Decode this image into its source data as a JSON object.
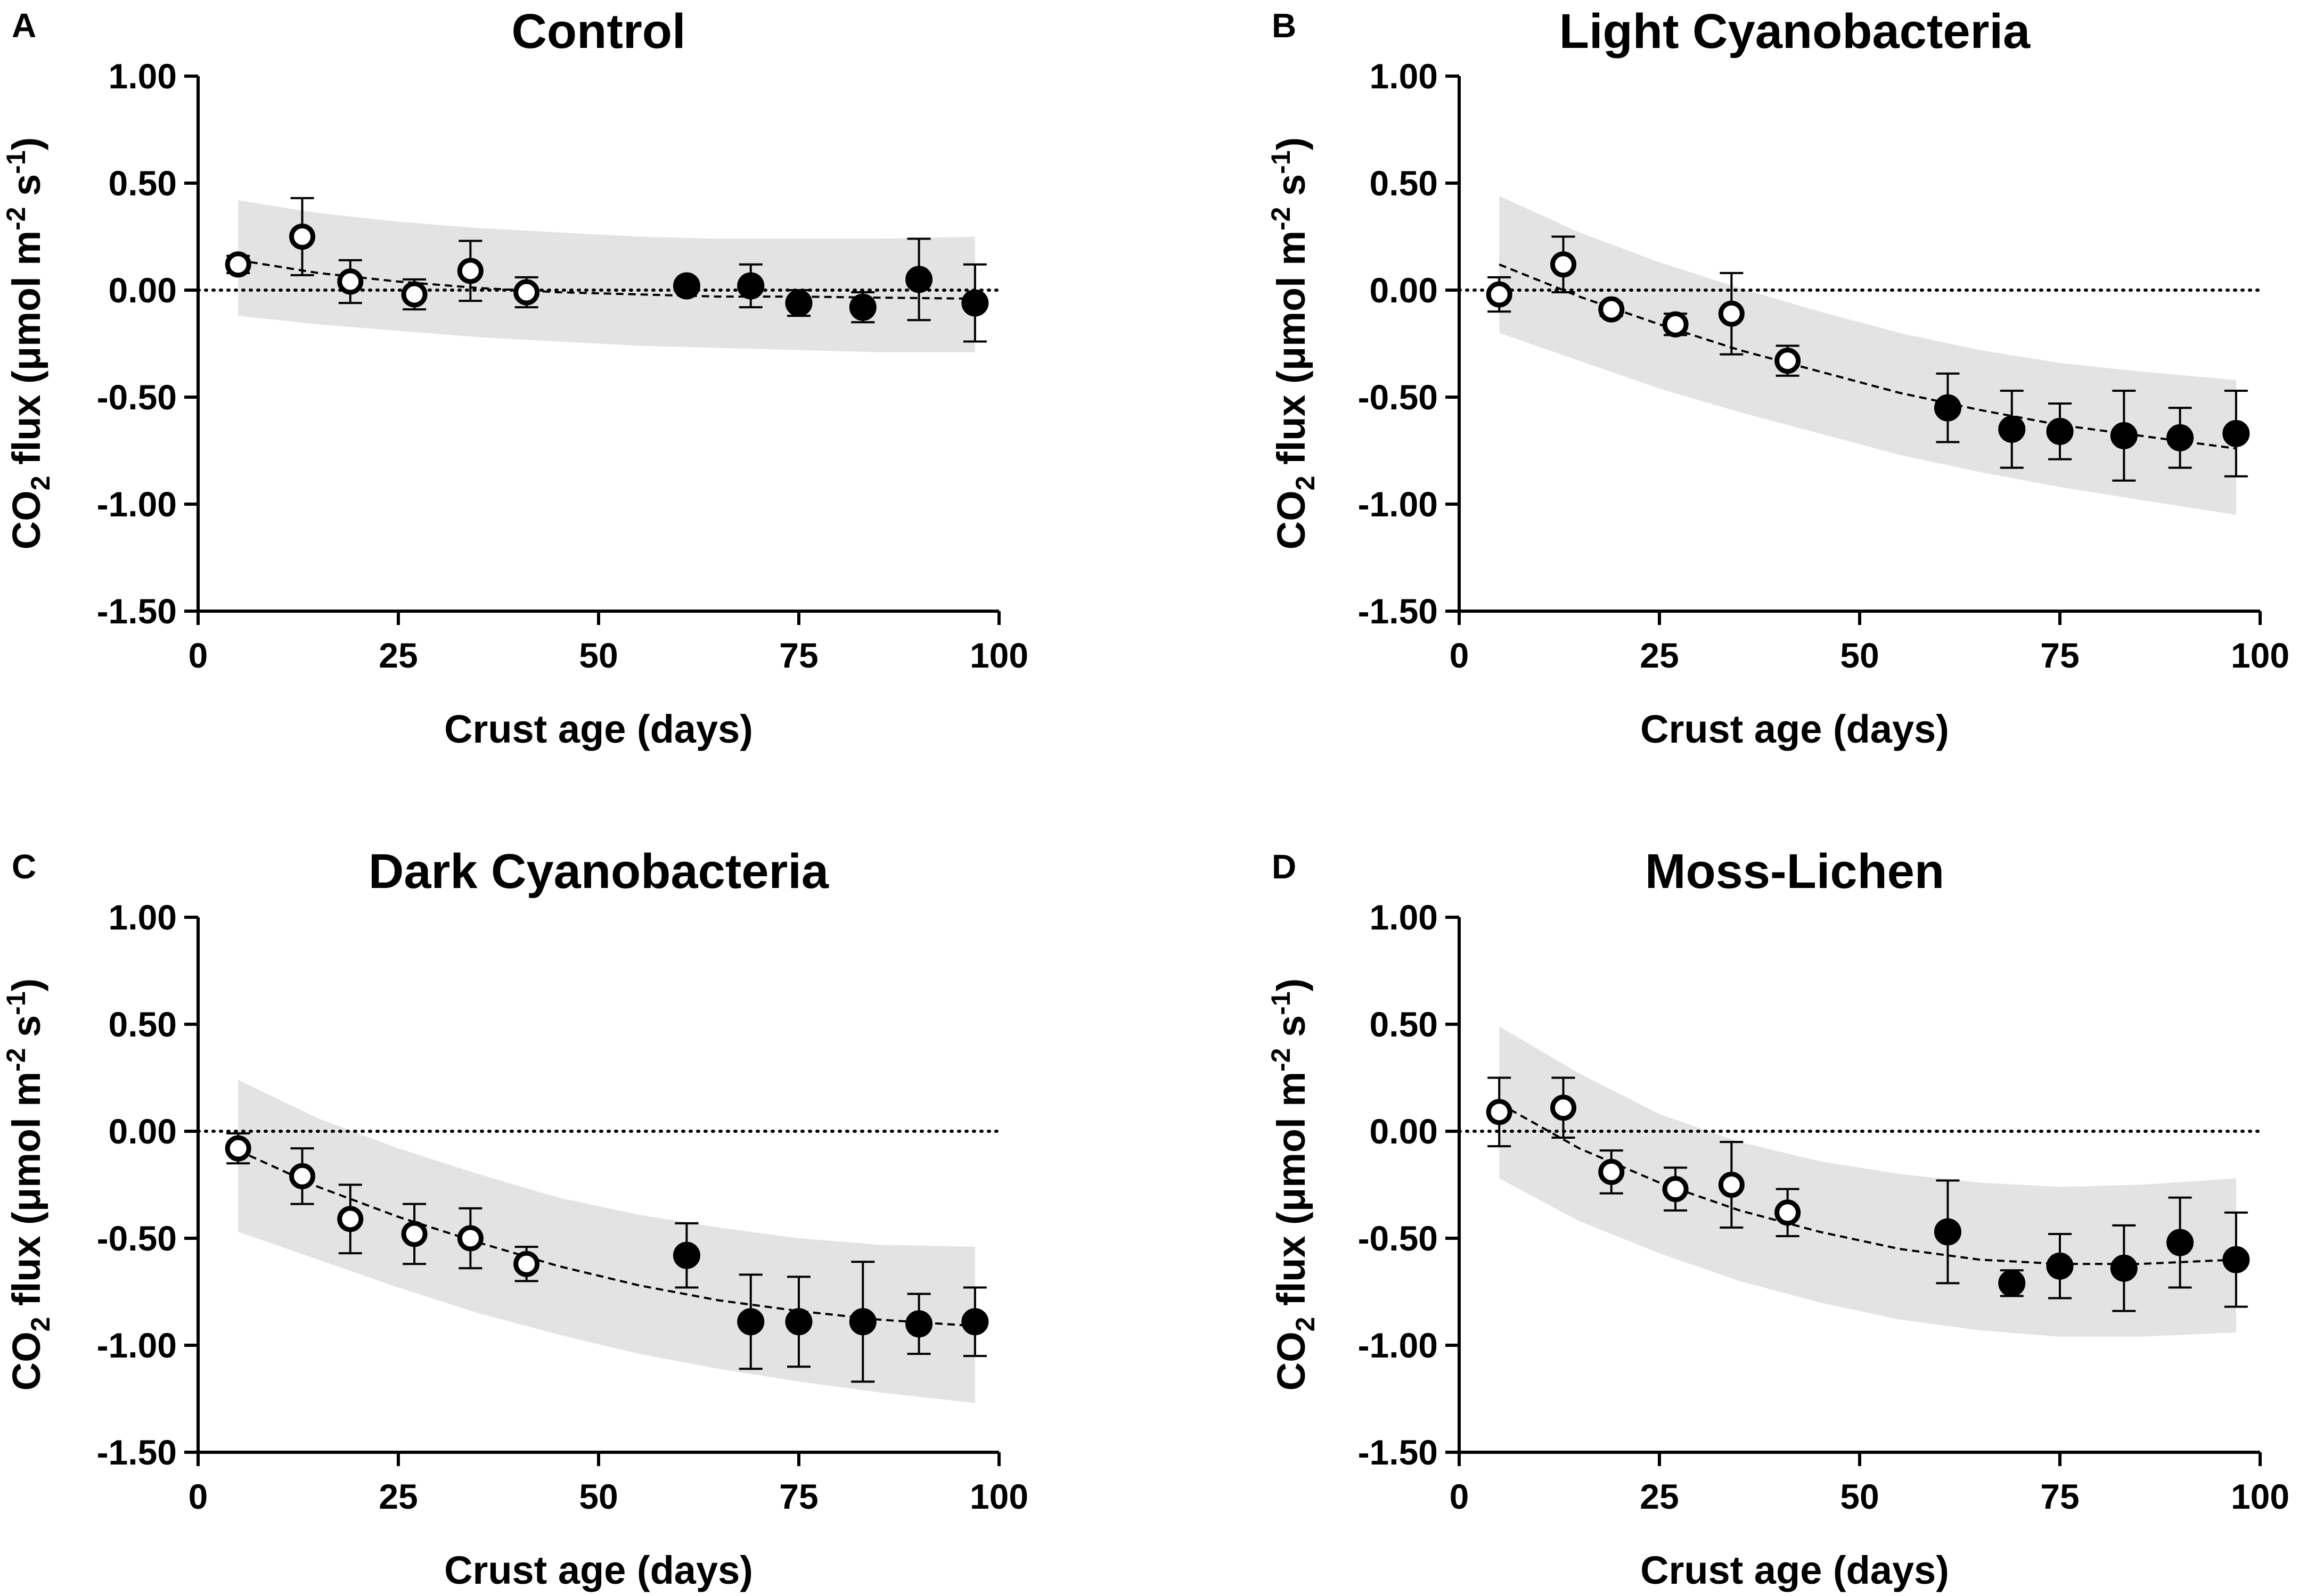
{
  "chart_data": [
    {
      "type": "scatter",
      "panel_label": "A",
      "title": "Control",
      "xlabel": "Crust age (days)",
      "ylabel": "CO2 flux (μmol m-2 s-1)",
      "ylabel_parts": {
        "a": "CO",
        "b": "2",
        "c": " flux (μmol m",
        "d": "-2",
        "e": " s",
        "f": "-1",
        "g": ")"
      },
      "xlim": [
        0,
        100
      ],
      "ylim": [
        -1.5,
        1.0
      ],
      "xticks": [
        0,
        25,
        50,
        75,
        100
      ],
      "yticks": [
        1.0,
        0.5,
        0.0,
        -0.5,
        -1.0,
        -1.5
      ],
      "xtick_labels": [
        "0",
        "25",
        "50",
        "75",
        "100"
      ],
      "ytick_labels": [
        "1.00",
        "0.50",
        "0.00",
        "-0.50",
        "-1.00",
        "-1.50"
      ],
      "zero_line": true,
      "series": [
        {
          "name": "open",
          "filled": false,
          "x": [
            5,
            13,
            19,
            27,
            34,
            41
          ],
          "y": [
            0.12,
            0.25,
            0.04,
            -0.02,
            0.09,
            -0.01
          ],
          "err": [
            0.04,
            0.18,
            0.1,
            0.07,
            0.14,
            0.07
          ]
        },
        {
          "name": "filled",
          "filled": true,
          "x": [
            61,
            69,
            75,
            83,
            90,
            97
          ],
          "y": [
            0.02,
            0.02,
            -0.06,
            -0.08,
            0.05,
            -0.06
          ],
          "err": [
            0.02,
            0.1,
            0.06,
            0.07,
            0.19,
            0.18
          ]
        }
      ],
      "fit": {
        "x": [
          5,
          15,
          25,
          35,
          45,
          55,
          65,
          75,
          85,
          97
        ],
        "y": [
          0.14,
          0.08,
          0.04,
          0.01,
          -0.01,
          -0.02,
          -0.03,
          -0.03,
          -0.035,
          -0.04
        ]
      },
      "band_upper": [
        0.42,
        0.36,
        0.32,
        0.29,
        0.27,
        0.25,
        0.24,
        0.24,
        0.24,
        0.25
      ],
      "band_lower": [
        -0.12,
        -0.16,
        -0.19,
        -0.22,
        -0.24,
        -0.26,
        -0.27,
        -0.28,
        -0.29,
        -0.29
      ]
    },
    {
      "type": "scatter",
      "panel_label": "B",
      "title": "Light Cyanobacteria",
      "xlabel": "Crust age (days)",
      "ylabel": "CO2 flux (μmol m-2 s-1)",
      "ylabel_parts": {
        "a": "CO",
        "b": "2",
        "c": " flux (μmol m",
        "d": "-2",
        "e": " s",
        "f": "-1",
        "g": ")"
      },
      "xlim": [
        0,
        100
      ],
      "ylim": [
        -1.5,
        1.0
      ],
      "xticks": [
        0,
        25,
        50,
        75,
        100
      ],
      "yticks": [
        1.0,
        0.5,
        0.0,
        -0.5,
        -1.0,
        -1.5
      ],
      "xtick_labels": [
        "0",
        "25",
        "50",
        "75",
        "100"
      ],
      "ytick_labels": [
        "1.00",
        "0.50",
        "0.00",
        "-0.50",
        "-1.00",
        "-1.50"
      ],
      "zero_line": true,
      "series": [
        {
          "name": "open",
          "filled": false,
          "x": [
            5,
            13,
            19,
            27,
            34,
            41
          ],
          "y": [
            -0.02,
            0.12,
            -0.09,
            -0.16,
            -0.11,
            -0.33
          ],
          "err": [
            0.08,
            0.13,
            0.03,
            0.05,
            0.19,
            0.07
          ]
        },
        {
          "name": "filled",
          "filled": true,
          "x": [
            61,
            69,
            75,
            83,
            90,
            97
          ],
          "y": [
            -0.55,
            -0.65,
            -0.66,
            -0.68,
            -0.69,
            -0.67
          ],
          "err": [
            0.16,
            0.18,
            0.13,
            0.21,
            0.14,
            0.2
          ]
        }
      ],
      "fit": {
        "x": [
          5,
          15,
          25,
          35,
          45,
          55,
          65,
          75,
          85,
          97
        ],
        "y": [
          0.12,
          -0.03,
          -0.16,
          -0.28,
          -0.38,
          -0.48,
          -0.56,
          -0.63,
          -0.68,
          -0.74
        ]
      },
      "band_upper": [
        0.44,
        0.27,
        0.13,
        0.01,
        -0.1,
        -0.2,
        -0.28,
        -0.34,
        -0.38,
        -0.42
      ],
      "band_lower": [
        -0.2,
        -0.33,
        -0.46,
        -0.57,
        -0.67,
        -0.77,
        -0.85,
        -0.92,
        -0.98,
        -1.05
      ]
    },
    {
      "type": "scatter",
      "panel_label": "C",
      "title": "Dark Cyanobacteria",
      "xlabel": "Crust age (days)",
      "ylabel": "CO2 flux (μmol m-2 s-1)",
      "ylabel_parts": {
        "a": "CO",
        "b": "2",
        "c": " flux (μmol m",
        "d": "-2",
        "e": " s",
        "f": "-1",
        "g": ")"
      },
      "xlim": [
        0,
        100
      ],
      "ylim": [
        -1.5,
        1.0
      ],
      "xticks": [
        0,
        25,
        50,
        75,
        100
      ],
      "yticks": [
        1.0,
        0.5,
        0.0,
        -0.5,
        -1.0,
        -1.5
      ],
      "xtick_labels": [
        "0",
        "25",
        "50",
        "75",
        "100"
      ],
      "ytick_labels": [
        "1.00",
        "0.50",
        "0.00",
        "-0.50",
        "-1.00",
        "-1.50"
      ],
      "zero_line": true,
      "series": [
        {
          "name": "open",
          "filled": false,
          "x": [
            5,
            13,
            19,
            27,
            34,
            41
          ],
          "y": [
            -0.08,
            -0.21,
            -0.41,
            -0.48,
            -0.5,
            -0.62
          ],
          "err": [
            0.07,
            0.13,
            0.16,
            0.14,
            0.14,
            0.08
          ]
        },
        {
          "name": "filled",
          "filled": true,
          "x": [
            61,
            69,
            75,
            83,
            90,
            97
          ],
          "y": [
            -0.58,
            -0.89,
            -0.89,
            -0.89,
            -0.9,
            -0.89
          ],
          "err": [
            0.15,
            0.22,
            0.21,
            0.28,
            0.14,
            0.16
          ]
        }
      ],
      "fit": {
        "x": [
          5,
          15,
          25,
          35,
          45,
          55,
          65,
          75,
          85,
          97
        ],
        "y": [
          -0.09,
          -0.26,
          -0.4,
          -0.52,
          -0.63,
          -0.72,
          -0.79,
          -0.84,
          -0.88,
          -0.91
        ]
      },
      "band_upper": [
        0.24,
        0.06,
        -0.08,
        -0.2,
        -0.31,
        -0.39,
        -0.45,
        -0.5,
        -0.53,
        -0.54
      ],
      "band_lower": [
        -0.47,
        -0.6,
        -0.73,
        -0.85,
        -0.95,
        -1.04,
        -1.11,
        -1.17,
        -1.22,
        -1.27
      ]
    },
    {
      "type": "scatter",
      "panel_label": "D",
      "title": "Moss-Lichen",
      "xlabel": "Crust age (days)",
      "ylabel": "CO2 flux (μmol m-2 s-1)",
      "ylabel_parts": {
        "a": "CO",
        "b": "2",
        "c": " flux (μmol m",
        "d": "-2",
        "e": " s",
        "f": "-1",
        "g": ")"
      },
      "xlim": [
        0,
        100
      ],
      "ylim": [
        -1.5,
        1.0
      ],
      "xticks": [
        0,
        25,
        50,
        75,
        100
      ],
      "yticks": [
        1.0,
        0.5,
        0.0,
        -0.5,
        -1.0,
        -1.5
      ],
      "xtick_labels": [
        "0",
        "25",
        "50",
        "75",
        "100"
      ],
      "ytick_labels": [
        "1.00",
        "0.50",
        "0.00",
        "-0.50",
        "-1.00",
        "-1.50"
      ],
      "zero_line": true,
      "series": [
        {
          "name": "open",
          "filled": false,
          "x": [
            5,
            13,
            19,
            27,
            34,
            41
          ],
          "y": [
            0.09,
            0.11,
            -0.19,
            -0.27,
            -0.25,
            -0.38
          ],
          "err": [
            0.16,
            0.14,
            0.1,
            0.1,
            0.2,
            0.11
          ]
        },
        {
          "name": "filled",
          "filled": true,
          "x": [
            61,
            69,
            75,
            83,
            90,
            97
          ],
          "y": [
            -0.47,
            -0.71,
            -0.63,
            -0.64,
            -0.52,
            -0.6
          ],
          "err": [
            0.24,
            0.06,
            0.15,
            0.2,
            0.21,
            0.22
          ]
        }
      ],
      "fit": {
        "x": [
          5,
          15,
          25,
          35,
          45,
          55,
          65,
          75,
          85,
          97
        ],
        "y": [
          0.13,
          -0.08,
          -0.24,
          -0.37,
          -0.47,
          -0.55,
          -0.6,
          -0.62,
          -0.62,
          -0.6
        ]
      },
      "band_upper": [
        0.49,
        0.27,
        0.08,
        -0.05,
        -0.14,
        -0.2,
        -0.24,
        -0.26,
        -0.25,
        -0.22
      ],
      "band_lower": [
        -0.22,
        -0.42,
        -0.57,
        -0.7,
        -0.8,
        -0.88,
        -0.93,
        -0.96,
        -0.96,
        -0.94
      ]
    }
  ]
}
